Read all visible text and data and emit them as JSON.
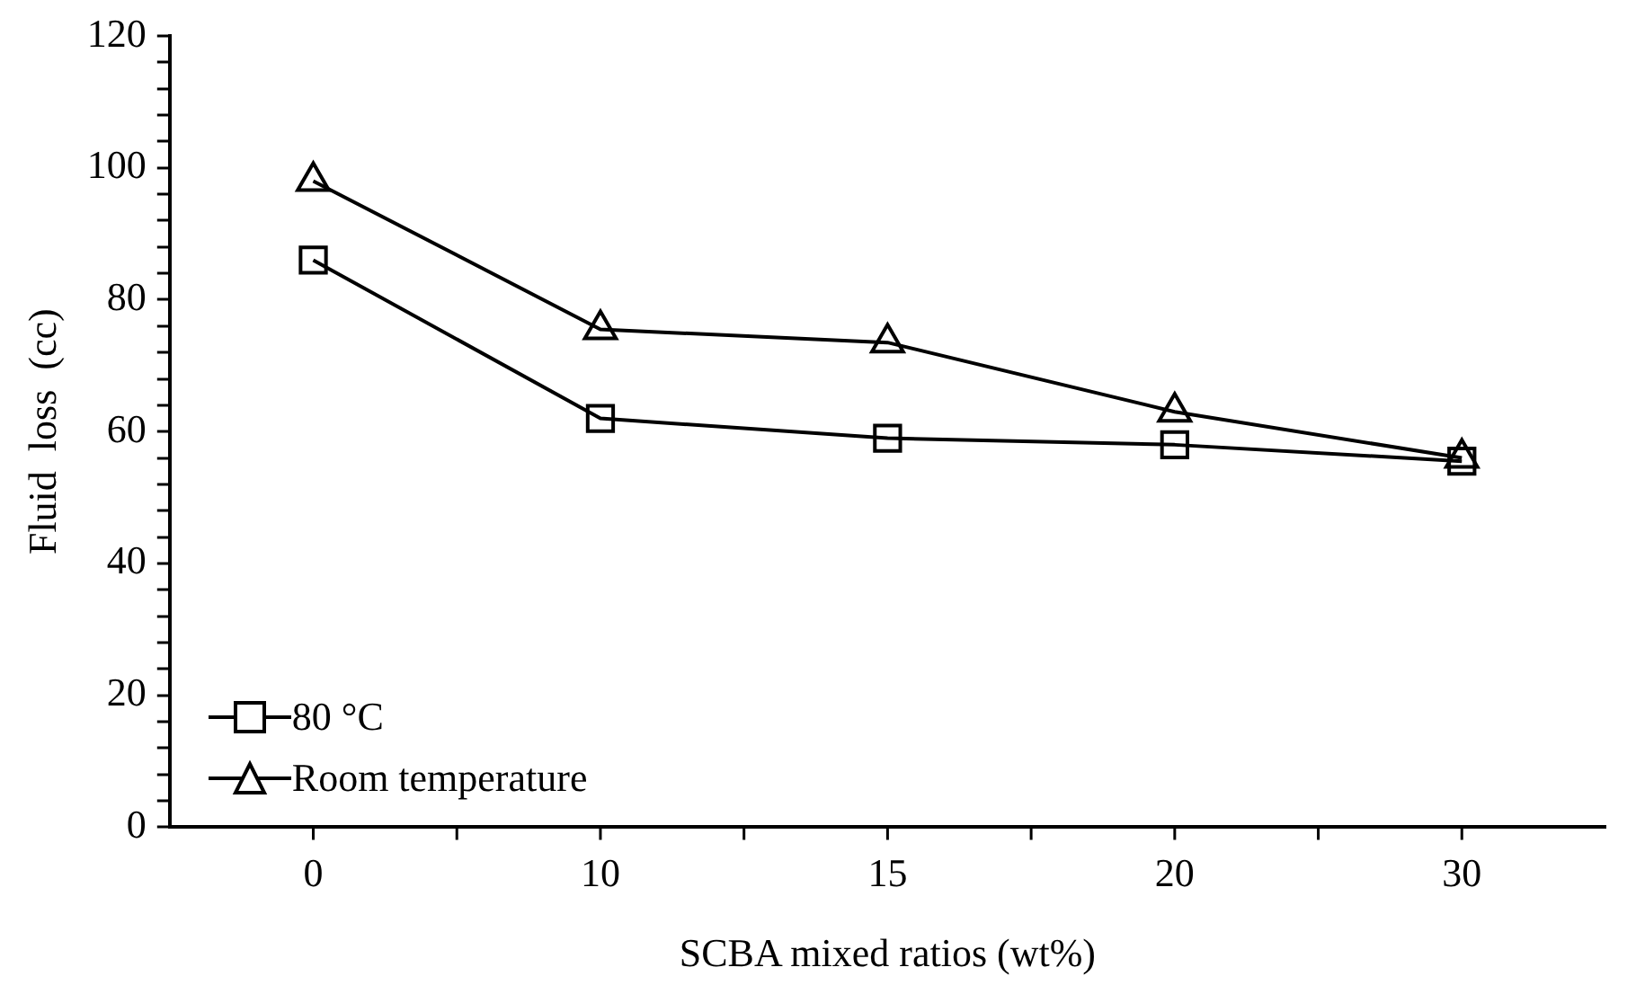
{
  "chart_data": {
    "type": "line",
    "xlabel": "SCBA mixed ratios (wt%)",
    "ylabel": "Fluid  loss  (cc)",
    "categories": [
      "0",
      "10",
      "15",
      "20",
      "30"
    ],
    "series": [
      {
        "name": "80 °C",
        "color": "#000000",
        "marker": "square",
        "values": [
          86,
          62,
          59,
          58,
          55.5
        ]
      },
      {
        "name": "Room temperature",
        "color": "#000000",
        "marker": "triangle",
        "values": [
          98,
          75.5,
          73.5,
          63,
          56
        ]
      }
    ],
    "ylim": [
      0,
      120
    ],
    "yticks": [
      0,
      {
        "value": 4,
        "label": null
      },
      {
        "value": 8,
        "label": null
      },
      {
        "value": 12,
        "label": null
      },
      {
        "value": 16,
        "label": null
      },
      20,
      {
        "value": 24,
        "label": null
      },
      {
        "value": 28,
        "label": null
      },
      {
        "value": 32,
        "label": null
      },
      {
        "value": 36,
        "label": null
      },
      40,
      {
        "value": 44,
        "label": null
      },
      {
        "value": 48,
        "label": null
      },
      {
        "value": 52,
        "label": null
      },
      {
        "value": 56,
        "label": null
      },
      60,
      {
        "value": 64,
        "label": null
      },
      {
        "value": 68,
        "label": null
      },
      {
        "value": 72,
        "label": null
      },
      {
        "value": 76,
        "label": null
      },
      80,
      {
        "value": 84,
        "label": null
      },
      {
        "value": 88,
        "label": null
      },
      {
        "value": 92,
        "label": null
      },
      {
        "value": 96,
        "label": null
      },
      100,
      {
        "value": 104,
        "label": null
      },
      {
        "value": 108,
        "label": null
      },
      {
        "value": 112,
        "label": null
      },
      {
        "value": 116,
        "label": null
      },
      120
    ],
    "grid": false,
    "legend": "bottom left",
    "line_style": "solid"
  }
}
